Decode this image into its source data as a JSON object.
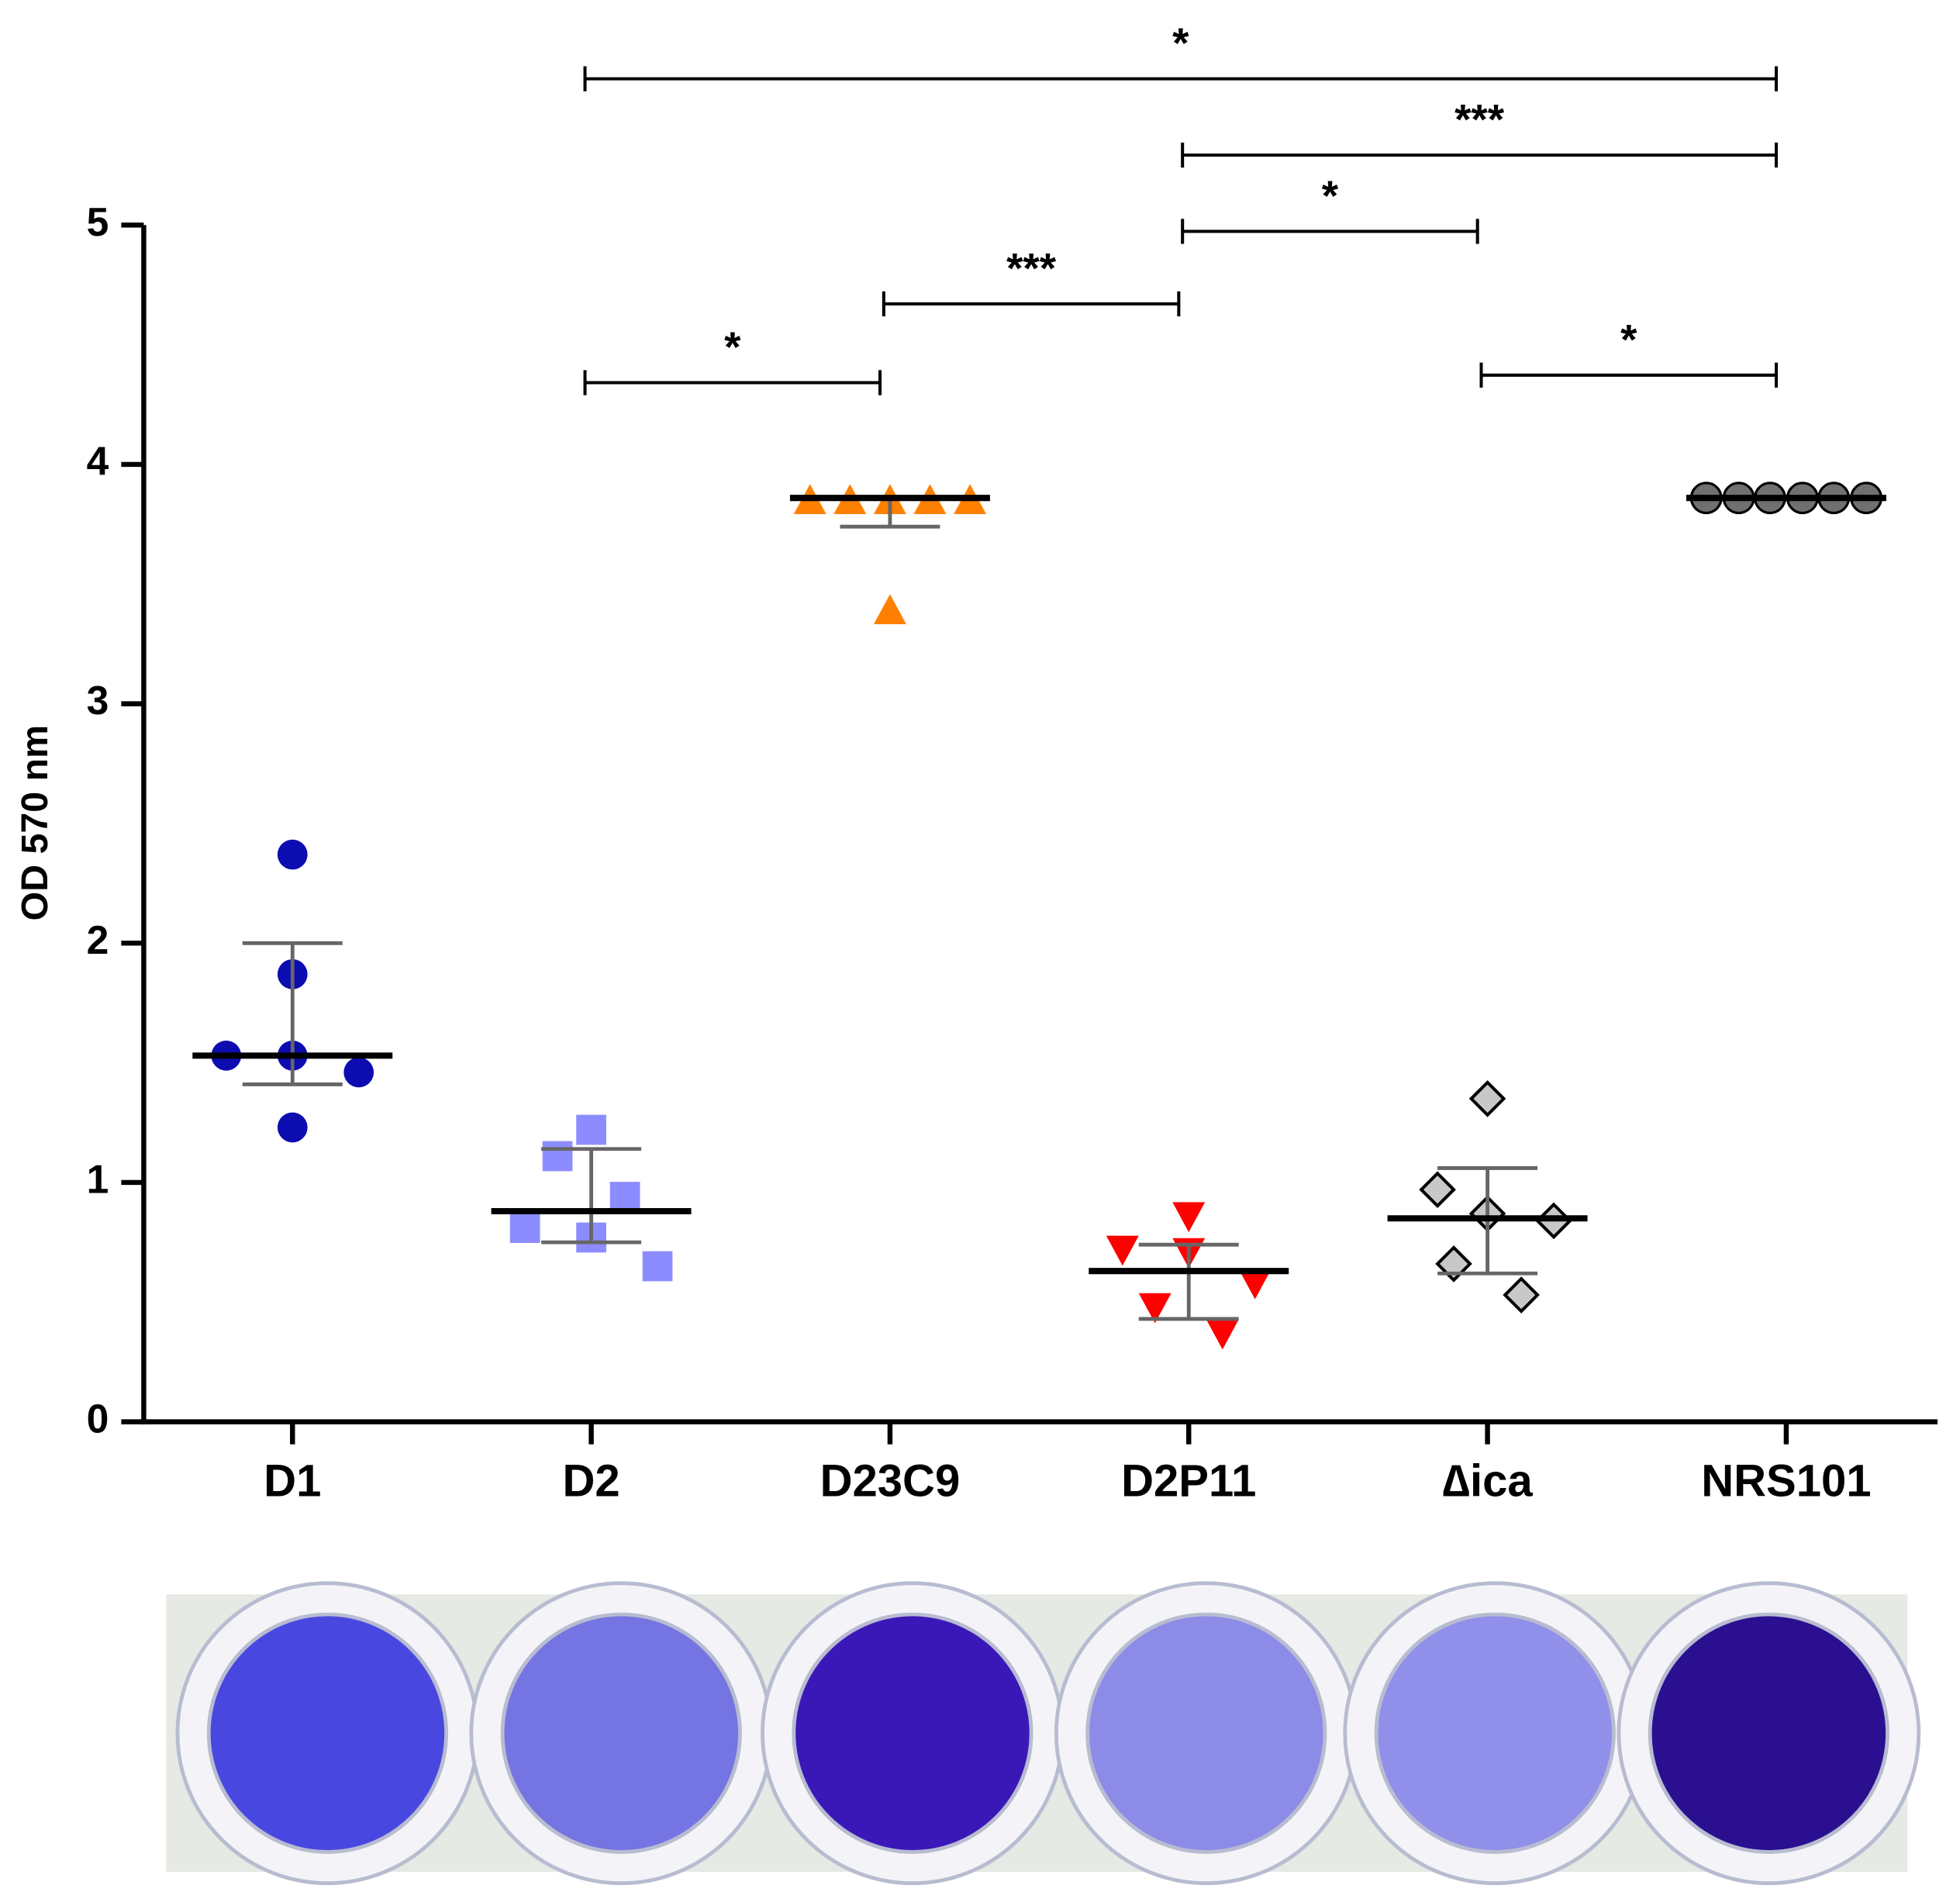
{
  "chart_data": {
    "type": "dot",
    "ylabel": "OD 570 nm",
    "categories": [
      "D1",
      "D2",
      "D23C9",
      "D2P11",
      "∆ica",
      "NRS101"
    ],
    "ylim": [
      0,
      5
    ],
    "yticks": [
      0,
      1,
      2,
      3,
      4,
      5
    ],
    "series": [
      {
        "color": "#0c0cb0",
        "marker": "circle",
        "values": [
          2.37,
          1.87,
          1.53,
          1.53,
          1.46,
          1.23
        ],
        "median": 1.53,
        "error": [
          1.41,
          2.0
        ]
      },
      {
        "color": "#8c8cff",
        "marker": "square",
        "values": [
          1.22,
          1.11,
          0.94,
          0.81,
          0.77,
          0.65
        ],
        "median": 0.88,
        "error": [
          0.75,
          1.14
        ]
      },
      {
        "color": "#ff8000",
        "marker": "triangle",
        "values": [
          3.85,
          3.85,
          3.85,
          3.85,
          3.85,
          3.39
        ],
        "median": 3.86,
        "error": [
          3.74,
          3.86
        ]
      },
      {
        "color": "#ff0000",
        "marker": "triangle-down",
        "values": [
          0.86,
          0.72,
          0.71,
          0.58,
          0.48,
          0.37
        ],
        "median": 0.63,
        "error": [
          0.43,
          0.74
        ]
      },
      {
        "color": "#c8c8c8",
        "marker": "diamond",
        "values": [
          1.35,
          0.97,
          0.87,
          0.84,
          0.66,
          0.53
        ],
        "median": 0.85,
        "error": [
          0.62,
          1.06
        ]
      },
      {
        "color": "#707070",
        "marker": "circle-outline",
        "values": [
          3.86,
          3.86,
          3.86,
          3.86,
          3.86,
          3.86
        ],
        "median": 3.86,
        "error": [
          3.86,
          3.86
        ]
      }
    ],
    "significance": [
      {
        "from": 1,
        "to": 5,
        "label": "*"
      },
      {
        "from": 3,
        "to": 5,
        "label": "***"
      },
      {
        "from": 3,
        "to": 4,
        "label": "*"
      },
      {
        "from": 2,
        "to": 3,
        "label": "***"
      },
      {
        "from": 1,
        "to": 2,
        "label": "*"
      },
      {
        "from": 4,
        "to": 5,
        "label": "*"
      }
    ]
  }
}
